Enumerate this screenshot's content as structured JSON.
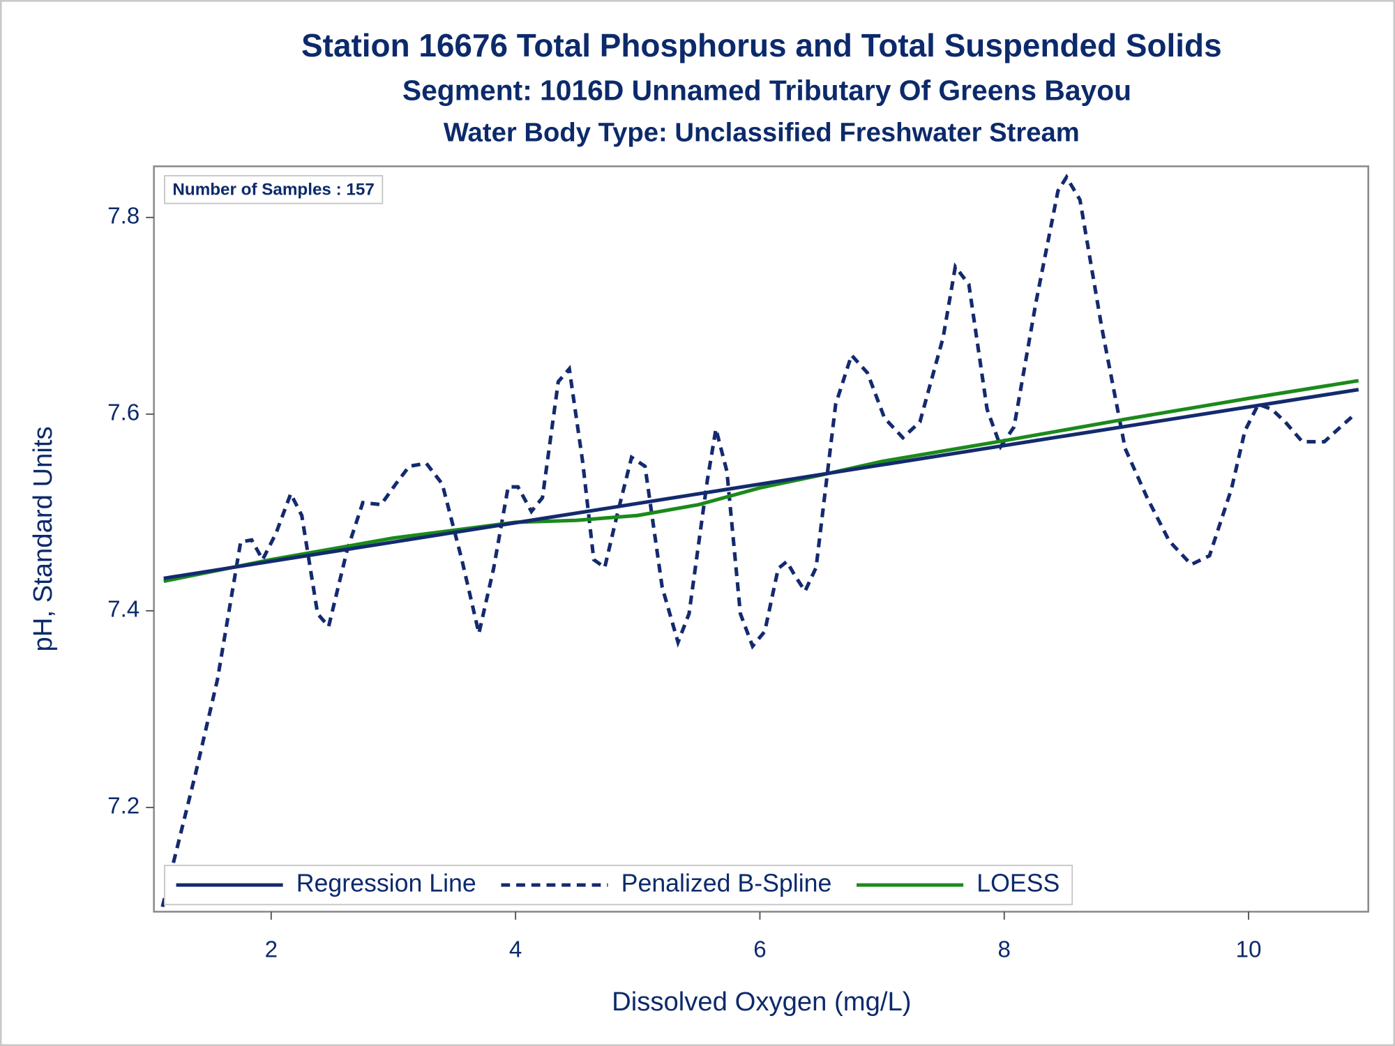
{
  "chart_data": {
    "type": "line",
    "title": "Station 16676  Total Phosphorus and Total Suspended Solids",
    "subtitles": [
      "Segment: 1016D  Unnamed Tributary Of Greens Bayou",
      "Water Body Type: Unclassified Freshwater Stream"
    ],
    "annotation": "Number of Samples : 157",
    "x_label": "Dissolved Oxygen (mg/L)",
    "y_label": "pH, Standard Units",
    "xlim": [
      1.04,
      10.98
    ],
    "ylim": [
      7.094,
      7.852
    ],
    "xticks": [
      2,
      4,
      6,
      8,
      10
    ],
    "yticks": [
      7.2,
      7.4,
      7.6,
      7.8
    ],
    "grid": false,
    "legend_position": "bottom-left",
    "series": [
      {
        "name": "Regression Line",
        "color": "#142a6e",
        "line_style": "solid",
        "x": [
          1.12,
          10.9
        ],
        "values": [
          7.433,
          7.625
        ]
      },
      {
        "name": "Penalized B-Spline",
        "color": "#142a6e",
        "line_style": "dashed",
        "x": [
          1.11,
          1.38,
          1.56,
          1.75,
          1.84,
          1.93,
          2.04,
          2.16,
          2.25,
          2.38,
          2.47,
          2.62,
          2.75,
          2.9,
          3.02,
          3.13,
          3.27,
          3.4,
          3.56,
          3.7,
          3.82,
          3.94,
          4.02,
          4.13,
          4.22,
          4.35,
          4.44,
          4.55,
          4.64,
          4.73,
          4.83,
          4.95,
          5.06,
          5.2,
          5.33,
          5.42,
          5.57,
          5.64,
          5.73,
          5.84,
          5.94,
          6.04,
          6.15,
          6.22,
          6.29,
          6.37,
          6.46,
          6.62,
          6.75,
          6.88,
          7.02,
          7.17,
          7.31,
          7.5,
          7.6,
          7.71,
          7.86,
          7.97,
          8.08,
          8.26,
          8.44,
          8.51,
          8.62,
          8.8,
          8.99,
          9.17,
          9.35,
          9.53,
          9.68,
          9.86,
          9.97,
          10.08,
          10.19,
          10.3,
          10.44,
          10.62,
          10.77,
          10.88
        ],
        "values": [
          7.099,
          7.234,
          7.33,
          7.47,
          7.472,
          7.452,
          7.479,
          7.519,
          7.497,
          7.397,
          7.384,
          7.461,
          7.51,
          7.508,
          7.529,
          7.547,
          7.55,
          7.529,
          7.452,
          7.377,
          7.443,
          7.526,
          7.526,
          7.501,
          7.515,
          7.633,
          7.646,
          7.551,
          7.452,
          7.444,
          7.497,
          7.556,
          7.547,
          7.424,
          7.368,
          7.397,
          7.533,
          7.585,
          7.542,
          7.397,
          7.364,
          7.379,
          7.443,
          7.45,
          7.435,
          7.42,
          7.444,
          7.61,
          7.66,
          7.642,
          7.596,
          7.576,
          7.592,
          7.678,
          7.75,
          7.732,
          7.605,
          7.567,
          7.587,
          7.714,
          7.827,
          7.841,
          7.818,
          7.687,
          7.565,
          7.515,
          7.471,
          7.447,
          7.456,
          7.524,
          7.583,
          7.61,
          7.605,
          7.592,
          7.572,
          7.572,
          7.589,
          7.601
        ]
      },
      {
        "name": "LOESS",
        "color": "#1b8a1b",
        "line_style": "solid",
        "x": [
          1.12,
          2,
          3,
          4,
          4.5,
          5,
          5.5,
          6,
          6.5,
          7,
          8,
          9,
          10,
          10.9
        ],
        "values": [
          7.43,
          7.452,
          7.474,
          7.49,
          7.492,
          7.497,
          7.508,
          7.525,
          7.538,
          7.552,
          7.573,
          7.595,
          7.616,
          7.634
        ]
      }
    ]
  }
}
